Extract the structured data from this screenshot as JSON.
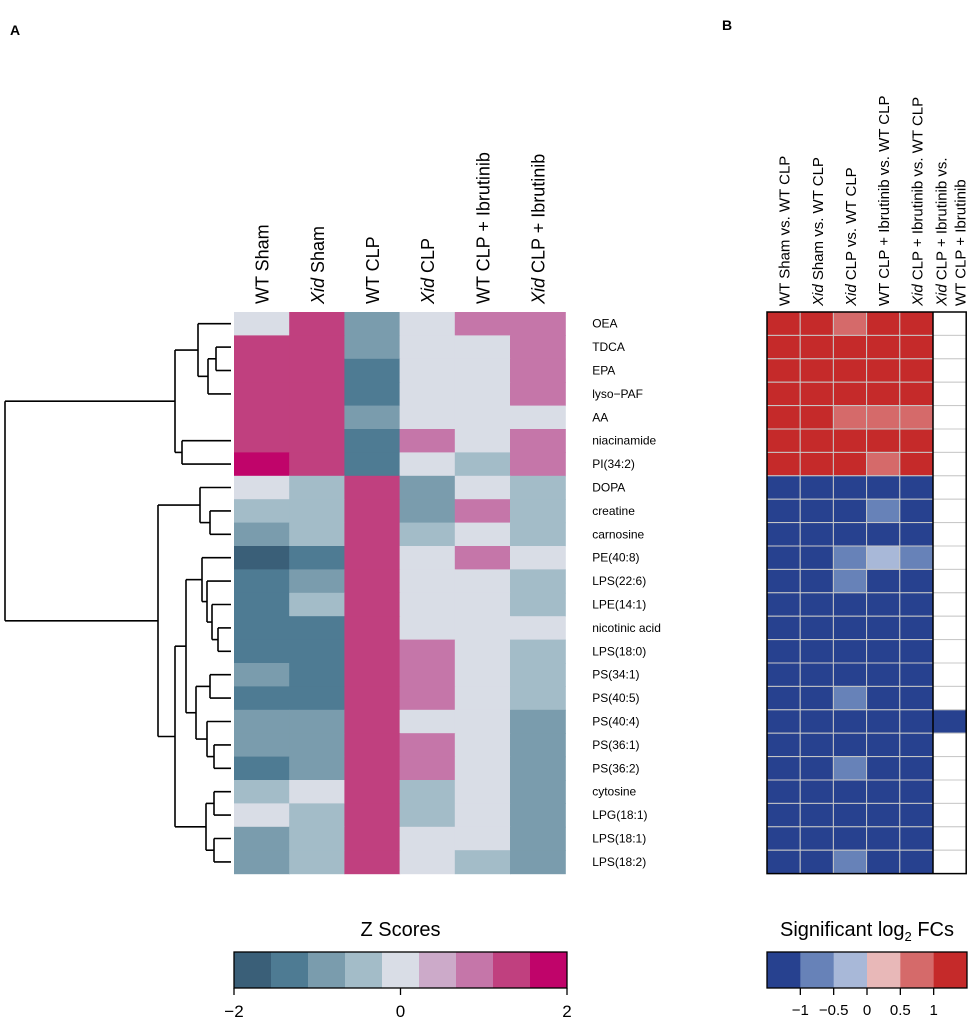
{
  "panel_labels": {
    "a": "A",
    "b": "B"
  },
  "colors": {
    "z_scale": [
      "#3a5f78",
      "#4e7b93",
      "#7a9cad",
      "#a3bcc8",
      "#d9dde6",
      "#ccaac9",
      "#c576a9",
      "#c0407f",
      "#c0046a"
    ],
    "fc_scale": [
      "#27418f",
      "#6782b8",
      "#a8b8d8",
      "#e8b8b8",
      "#d56a6a",
      "#c52a2a"
    ],
    "fc_white": "#ffffff",
    "cell_border": "#c8c8c8"
  },
  "chart_data": [
    {
      "type": "heatmap",
      "title": "",
      "columns": [
        {
          "italic": "",
          "text": "WT Sham"
        },
        {
          "italic": "Xid",
          "text": "  Sham"
        },
        {
          "italic": "",
          "text": "WT CLP"
        },
        {
          "italic": "Xid",
          "text": "  CLP"
        },
        {
          "italic": "",
          "text": "WT CLP + Ibrutinib"
        },
        {
          "italic": "Xid",
          "text": "  CLP + Ibrutinib"
        }
      ],
      "rows": [
        "OEA",
        "TDCA",
        "EPA",
        "lyso−PAF",
        "AA",
        "niacinamide",
        "PI(34:2)",
        "DOPA",
        "creatine",
        "carnosine",
        "PE(40:8)",
        "LPS(22:6)",
        "LPE(14:1)",
        "nicotinic acid",
        "LPS(18:0)",
        "PS(34:1)",
        "PS(40:5)",
        "PS(40:4)",
        "PS(36:1)",
        "PS(36:2)",
        "cytosine",
        "LPG(18:1)",
        "LPS(18:1)",
        "LPS(18:2)"
      ],
      "values": [
        [
          0,
          1.25,
          -0.75,
          0,
          0.75,
          0.75
        ],
        [
          1.25,
          1.25,
          -0.75,
          0,
          0,
          0.75
        ],
        [
          1.5,
          1.25,
          -1.25,
          0,
          0,
          0.75
        ],
        [
          1.25,
          1.5,
          -1.25,
          0,
          0,
          0.75
        ],
        [
          1.5,
          1.25,
          -0.75,
          0,
          0,
          0
        ],
        [
          1.25,
          1.25,
          -1.25,
          0.75,
          0,
          0.75
        ],
        [
          1.9,
          1.25,
          -1.25,
          0,
          -0.5,
          0.75
        ],
        [
          0,
          -0.5,
          1.5,
          -0.75,
          0,
          -0.5
        ],
        [
          -0.5,
          -0.5,
          1.5,
          -0.75,
          0.75,
          -0.5
        ],
        [
          -0.75,
          -0.5,
          1.5,
          -0.5,
          0,
          -0.5
        ],
        [
          -1.6,
          -1.25,
          1.25,
          0,
          0.75,
          0
        ],
        [
          -1.25,
          -0.75,
          1.5,
          0,
          0,
          -0.5
        ],
        [
          -1.25,
          -0.5,
          1.5,
          0,
          0,
          -0.5
        ],
        [
          -1.25,
          -1.25,
          1.5,
          0,
          0,
          0
        ],
        [
          -1.25,
          -1.25,
          1.5,
          0.75,
          0,
          -0.5
        ],
        [
          -0.75,
          -1.25,
          1.25,
          0.75,
          0,
          -0.5
        ],
        [
          -1.25,
          -1.25,
          1.25,
          0.75,
          0,
          -0.5
        ],
        [
          -0.75,
          -0.75,
          1.5,
          0,
          0,
          -0.75
        ],
        [
          -0.75,
          -0.75,
          1.5,
          0.75,
          0,
          -0.75
        ],
        [
          -1.25,
          -0.75,
          1.5,
          0.75,
          0,
          -0.75
        ],
        [
          -0.5,
          0,
          1.5,
          -0.5,
          0,
          -0.75
        ],
        [
          0,
          -0.5,
          1.5,
          -0.5,
          0,
          -0.75
        ],
        [
          -0.75,
          -0.5,
          1.5,
          0,
          0,
          -0.75
        ],
        [
          -0.75,
          -0.5,
          1.5,
          0,
          -0.5,
          -0.75
        ]
      ],
      "dendrogram_splits": [
        {
          "merge": [
            0,
            3
          ],
          "height": 0.2
        },
        {
          "merge": [
            1,
            2
          ],
          "height": 0.1
        },
        {
          "merge": [
            4,
            4
          ],
          "height": 0.05
        },
        {
          "merge": [
            5,
            6
          ],
          "height": 0.15
        },
        {
          "merge": [
            0,
            6
          ],
          "height": 0.35
        },
        {
          "merge": [
            7,
            23
          ],
          "height": 1.0
        },
        {
          "merge": [
            0,
            23
          ],
          "height": 1.0
        }
      ],
      "legend": {
        "title": "Z Scores",
        "range": [
          -2,
          2
        ],
        "ticks": [
          {
            "v": -2,
            "label": "−2"
          },
          {
            "v": 0,
            "label": "0"
          },
          {
            "v": 2,
            "label": "2"
          }
        ]
      }
    },
    {
      "type": "heatmap",
      "title": "",
      "columns": [
        {
          "italic": "",
          "text": "WT Sham vs. WT CLP"
        },
        {
          "italic": "Xid",
          "text": " Sham vs. WT CLP"
        },
        {
          "italic": "Xid",
          "text": " CLP vs. WT CLP"
        },
        {
          "italic": "",
          "text": "WT CLP + Ibrutinib vs. WT CLP"
        },
        {
          "italic": "Xid",
          "text": " CLP + Ibrutinib vs. WT CLP"
        },
        {
          "italic": "Xid",
          "text": " CLP + Ibrutinib vs.",
          "line2": "WT CLP + Ibrutinib"
        }
      ],
      "values": [
        [
          1.2,
          1.2,
          0.6,
          1.2,
          1.2,
          null
        ],
        [
          1.2,
          1.2,
          1.2,
          1.2,
          1.2,
          null
        ],
        [
          1.2,
          1.2,
          1.2,
          1.2,
          1.2,
          null
        ],
        [
          1.2,
          1.2,
          1.2,
          1.2,
          1.2,
          null
        ],
        [
          1.2,
          1.2,
          0.6,
          0.6,
          0.6,
          null
        ],
        [
          1.2,
          1.2,
          1.2,
          1.2,
          1.2,
          null
        ],
        [
          1.2,
          1.2,
          1.2,
          0.6,
          1.2,
          null
        ],
        [
          -1.2,
          -1.2,
          -1.2,
          -1.2,
          -1.2,
          null
        ],
        [
          -1.2,
          -1.2,
          -1.2,
          -0.8,
          -1.2,
          null
        ],
        [
          -1.2,
          -1.2,
          -1.2,
          -1.2,
          -1.2,
          null
        ],
        [
          -1.2,
          -1.2,
          -0.8,
          -0.3,
          -0.8,
          null
        ],
        [
          -1.2,
          -1.2,
          -0.8,
          -1.2,
          -1.2,
          null
        ],
        [
          -1.2,
          -1.2,
          -1.2,
          -1.2,
          -1.2,
          null
        ],
        [
          -1.2,
          -1.2,
          -1.2,
          -1.2,
          -1.2,
          null
        ],
        [
          -1.2,
          -1.2,
          -1.2,
          -1.2,
          -1.2,
          null
        ],
        [
          -1.2,
          -1.2,
          -1.2,
          -1.2,
          -1.2,
          null
        ],
        [
          -1.2,
          -1.2,
          -0.8,
          -1.2,
          -1.2,
          null
        ],
        [
          -1.2,
          -1.2,
          -1.2,
          -1.2,
          -1.2,
          -1.2
        ],
        [
          -1.2,
          -1.2,
          -1.2,
          -1.2,
          -1.2,
          null
        ],
        [
          -1.2,
          -1.2,
          -0.8,
          -1.2,
          -1.2,
          null
        ],
        [
          -1.2,
          -1.2,
          -1.2,
          -1.2,
          -1.2,
          null
        ],
        [
          -1.2,
          -1.2,
          -1.2,
          -1.2,
          -1.2,
          null
        ],
        [
          -1.2,
          -1.2,
          -1.2,
          -1.2,
          -1.2,
          null
        ],
        [
          -1.2,
          -1.2,
          -0.8,
          -1.2,
          -1.2,
          null
        ]
      ],
      "legend": {
        "title_prefix": "Significant log",
        "title_sub": "2",
        "title_suffix": " FCs",
        "range": [
          -1.5,
          1.5
        ],
        "ticks": [
          {
            "v": -1,
            "label": "−1"
          },
          {
            "v": -0.5,
            "label": "−0.5"
          },
          {
            "v": 0,
            "label": "0"
          },
          {
            "v": 0.5,
            "label": "0.5"
          },
          {
            "v": 1,
            "label": "1"
          }
        ]
      }
    }
  ]
}
